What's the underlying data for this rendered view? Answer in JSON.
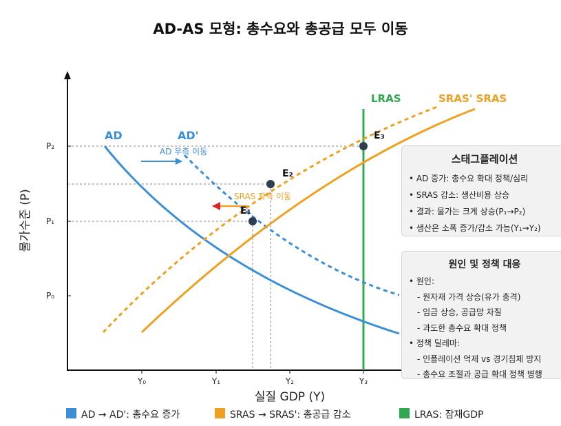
{
  "title": "AD-AS 모형: 총수요와 총공급 모두 이동",
  "axes": {
    "xlabel": "실질 GDP (Y)",
    "ylabel": "물가수준 (P)",
    "x_ticks": [
      "Y₀",
      "Y₁",
      "Y₂",
      "Y₃"
    ],
    "y_ticks": [
      "P₂",
      "P₁",
      "P₀"
    ]
  },
  "curves": {
    "ad": "AD",
    "ad_prime": "AD'",
    "lras": "LRAS",
    "sras_pair": "SRAS' SRAS"
  },
  "points": {
    "e1": "E₁",
    "e2": "E₂",
    "e3": "E₃"
  },
  "annotations": {
    "ad_shift": "AD 우측 이동",
    "sras_shift": "SRAS 좌측 이동"
  },
  "colors": {
    "ad": "#3a8fd8",
    "sras": "#f0a020",
    "lras": "#2fa84f",
    "grid": "#888888",
    "point": "#2c3e50",
    "arrow": "#3a8fd8"
  },
  "stagflation_box": {
    "title": "스태그플레이션",
    "items": [
      "• AD 증가: 총수요 확대 정책/심리",
      "• SRAS 감소: 생산비용 상승",
      "• 결과: 물가는 크게 상승(P₁→P₂)",
      "• 생산은 소폭 증가/감소 가능(Y₁→Y₂)"
    ]
  },
  "cause_box": {
    "title": "원인 및 정책 대응",
    "items": [
      {
        "text": "• 원인:",
        "sub": false
      },
      {
        "text": "- 원자재 가격 상승(유가 충격)",
        "sub": true
      },
      {
        "text": "- 임금 상승, 공급망 차질",
        "sub": true
      },
      {
        "text": "- 과도한 총수요 확대 정책",
        "sub": true
      },
      {
        "text": "• 정책 딜레마:",
        "sub": false
      },
      {
        "text": "- 인플레이션 억제 vs 경기침체 방지",
        "sub": true
      },
      {
        "text": "- 총수요 조절과 공급 확대 정책 병행",
        "sub": true
      }
    ]
  },
  "legend": [
    {
      "label": "AD → AD': 총수요 증가",
      "color": "#3a8fd8"
    },
    {
      "label": "SRAS → SRAS': 총공급 감소",
      "color": "#f0a020"
    },
    {
      "label": "LRAS: 잠재GDP",
      "color": "#2fa84f"
    }
  ]
}
